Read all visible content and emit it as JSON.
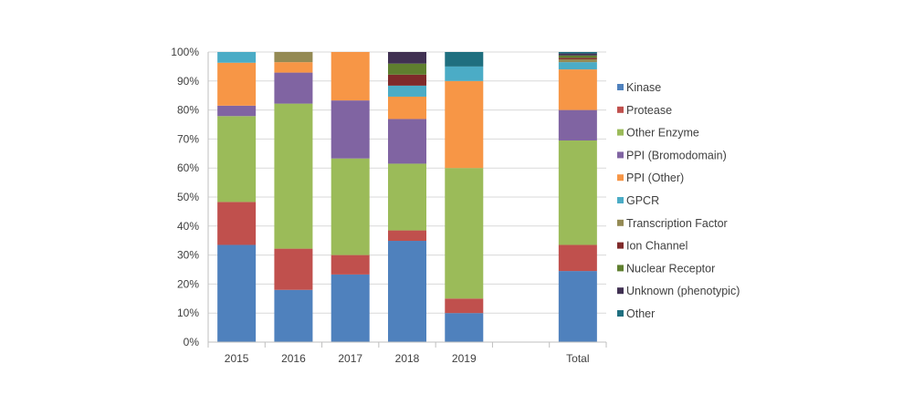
{
  "chart_data": {
    "type": "bar",
    "stacked": true,
    "percent": true,
    "categories": [
      "2015",
      "2016",
      "2017",
      "2018",
      "2019",
      "",
      "Total"
    ],
    "ylim": [
      0,
      100
    ],
    "yticks": [
      "0%",
      "10%",
      "20%",
      "30%",
      "40%",
      "50%",
      "60%",
      "70%",
      "80%",
      "90%",
      "100%"
    ],
    "grid": "horizontal",
    "legend": "right",
    "series": [
      {
        "name": "Kinase",
        "color": "#4f81bd",
        "values": [
          33.5,
          18,
          23.3,
          34.9,
          10,
          0,
          24.5
        ]
      },
      {
        "name": "Protease",
        "color": "#c0504d",
        "values": [
          14.8,
          14.2,
          6.7,
          3.6,
          5,
          0,
          9
        ]
      },
      {
        "name": "Other Enzyme",
        "color": "#9bbb59",
        "values": [
          29.6,
          50,
          33.3,
          23,
          45,
          0,
          36
        ]
      },
      {
        "name": "PPI (Bromodomain)",
        "color": "#8064a2",
        "values": [
          3.6,
          10.7,
          20,
          15.4,
          0,
          0,
          10.5
        ]
      },
      {
        "name": "PPI (Other)",
        "color": "#f79646",
        "values": [
          14.8,
          3.6,
          16.7,
          7.7,
          30,
          0,
          14
        ]
      },
      {
        "name": "GPCR",
        "color": "#4bacc6",
        "values": [
          3.7,
          0,
          0,
          3.8,
          5,
          0,
          2.5
        ]
      },
      {
        "name": "Transcription Factor",
        "color": "#948a54",
        "values": [
          0,
          3.5,
          0,
          0,
          0,
          0,
          1
        ]
      },
      {
        "name": "Ion Channel",
        "color": "#7f2a2a",
        "values": [
          0,
          0,
          0,
          3.8,
          0,
          0,
          0.5
        ]
      },
      {
        "name": "Nuclear Receptor",
        "color": "#5f7f2f",
        "values": [
          0,
          0,
          0,
          3.8,
          0,
          0,
          0.8
        ]
      },
      {
        "name": "Unknown (phenotypic)",
        "color": "#403152",
        "values": [
          0,
          0,
          0,
          4,
          0,
          0,
          0.7
        ]
      },
      {
        "name": "Other",
        "color": "#1f6f7f",
        "values": [
          0,
          0,
          0,
          0,
          5,
          0,
          0.5
        ]
      }
    ]
  }
}
